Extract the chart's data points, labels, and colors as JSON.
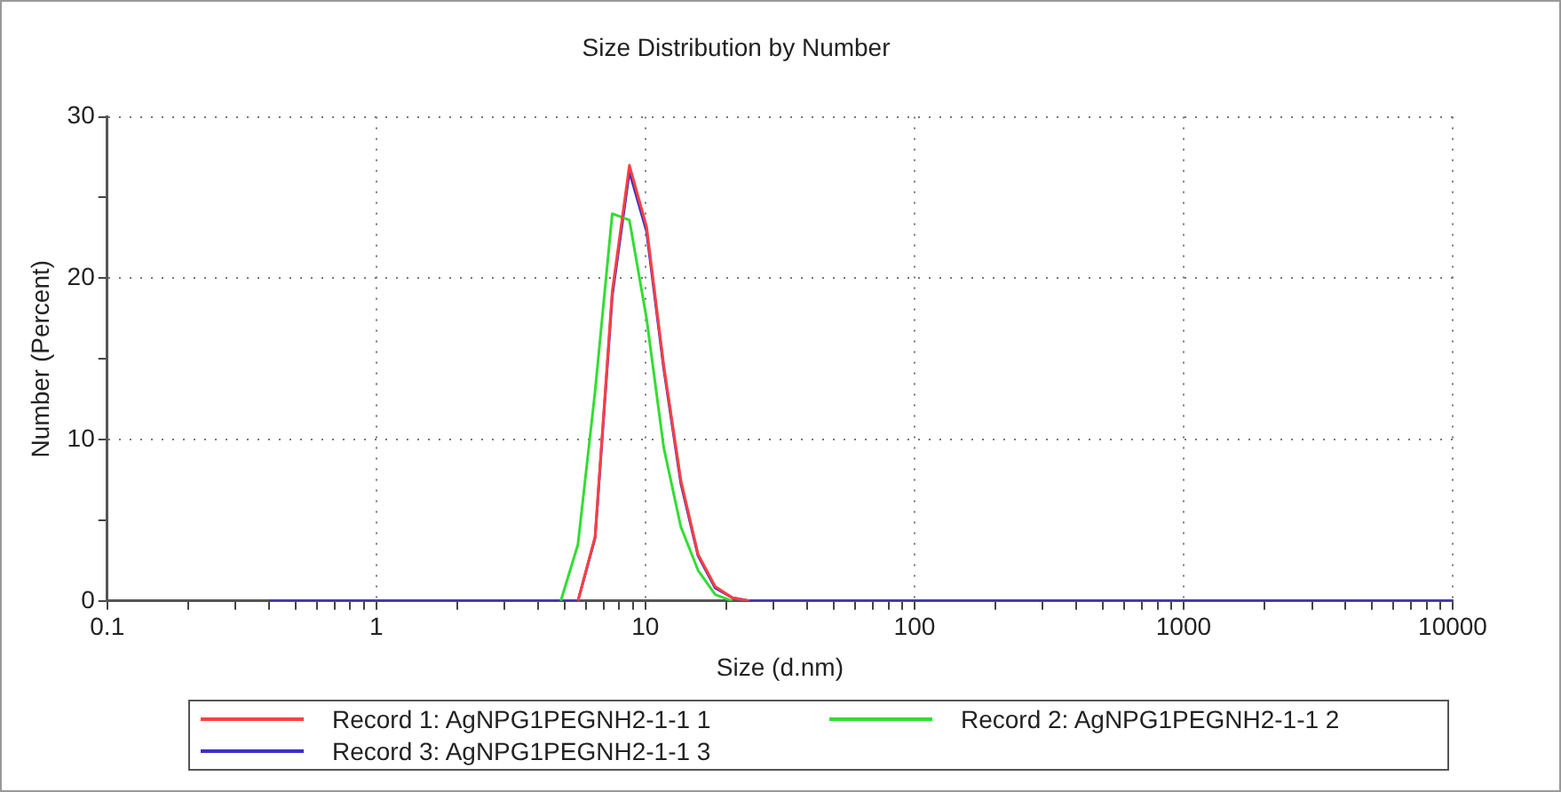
{
  "chart_data": {
    "type": "line",
    "title": "Size Distribution by Number",
    "xlabel": "Size (d.nm)",
    "ylabel": "Number (Percent)",
    "log": "x",
    "xlim": [
      0.1,
      10000
    ],
    "ylim": [
      0,
      30
    ],
    "xticks": [
      0.1,
      {
        "value": 0.2,
        "label": null
      },
      {
        "value": 0.3,
        "label": null
      },
      {
        "value": 0.4,
        "label": null
      },
      {
        "value": 0.5,
        "label": null
      },
      {
        "value": 0.6,
        "label": null
      },
      {
        "value": 0.7,
        "label": null
      },
      {
        "value": 0.8,
        "label": null
      },
      {
        "value": 0.9,
        "label": null
      },
      1,
      {
        "value": 2,
        "label": null
      },
      {
        "value": 3,
        "label": null
      },
      {
        "value": 4,
        "label": null
      },
      {
        "value": 5,
        "label": null
      },
      {
        "value": 6,
        "label": null
      },
      {
        "value": 7,
        "label": null
      },
      {
        "value": 8,
        "label": null
      },
      {
        "value": 9,
        "label": null
      },
      10,
      {
        "value": 20,
        "label": null
      },
      {
        "value": 30,
        "label": null
      },
      {
        "value": 40,
        "label": null
      },
      {
        "value": 50,
        "label": null
      },
      {
        "value": 60,
        "label": null
      },
      {
        "value": 70,
        "label": null
      },
      {
        "value": 80,
        "label": null
      },
      {
        "value": 90,
        "label": null
      },
      100,
      {
        "value": 200,
        "label": null
      },
      {
        "value": 300,
        "label": null
      },
      {
        "value": 400,
        "label": null
      },
      {
        "value": 500,
        "label": null
      },
      {
        "value": 600,
        "label": null
      },
      {
        "value": 700,
        "label": null
      },
      {
        "value": 800,
        "label": null
      },
      {
        "value": 900,
        "label": null
      },
      1000,
      {
        "value": 2000,
        "label": null
      },
      {
        "value": 3000,
        "label": null
      },
      {
        "value": 4000,
        "label": null
      },
      {
        "value": 5000,
        "label": null
      },
      {
        "value": 6000,
        "label": null
      },
      {
        "value": 7000,
        "label": null
      },
      {
        "value": 8000,
        "label": null
      },
      {
        "value": 9000,
        "label": null
      },
      10000
    ],
    "yticks": [
      0,
      {
        "value": 5,
        "label": null
      },
      10,
      {
        "value": 15,
        "label": null
      },
      20,
      {
        "value": 25,
        "label": null
      },
      30
    ],
    "grid": true,
    "legend": "bottom",
    "marker": "none",
    "line_style": "solid",
    "series": [
      {
        "name": "Record 1: AgNPG1PEGNH2-1-1 1",
        "color": "#ff4040",
        "x": [
          5.615,
          6.503,
          7.531,
          8.721,
          10.1,
          11.7,
          13.54,
          15.69,
          18.17,
          21.04,
          24.36
        ],
        "values": [
          0,
          4,
          19.2,
          27,
          23.2,
          14.6,
          7.5,
          2.9,
          0.9,
          0.2,
          0
        ]
      },
      {
        "name": "Record 2: AgNPG1PEGNH2-1-1 2",
        "color": "#33dd33",
        "x": [
          4.849,
          5.615,
          6.503,
          7.531,
          8.721,
          10.1,
          11.7,
          13.54,
          15.69,
          18.17,
          21.04
        ],
        "values": [
          0,
          3.5,
          13,
          24,
          23.6,
          17.5,
          9.5,
          4.6,
          1.9,
          0.4,
          0
        ]
      },
      {
        "name": "Record 3: AgNPG1PEGNH2-1-1 3",
        "color": "#3a2fc8",
        "x": [
          0.4,
          5.615,
          6.503,
          7.531,
          8.721,
          10.1,
          11.7,
          13.54,
          15.69,
          18.17,
          21.04,
          24.36,
          10000
        ],
        "values": [
          0,
          0,
          3.9,
          18.9,
          26.6,
          22.9,
          14.4,
          7.3,
          2.8,
          0.8,
          0.2,
          0,
          0
        ]
      }
    ]
  }
}
